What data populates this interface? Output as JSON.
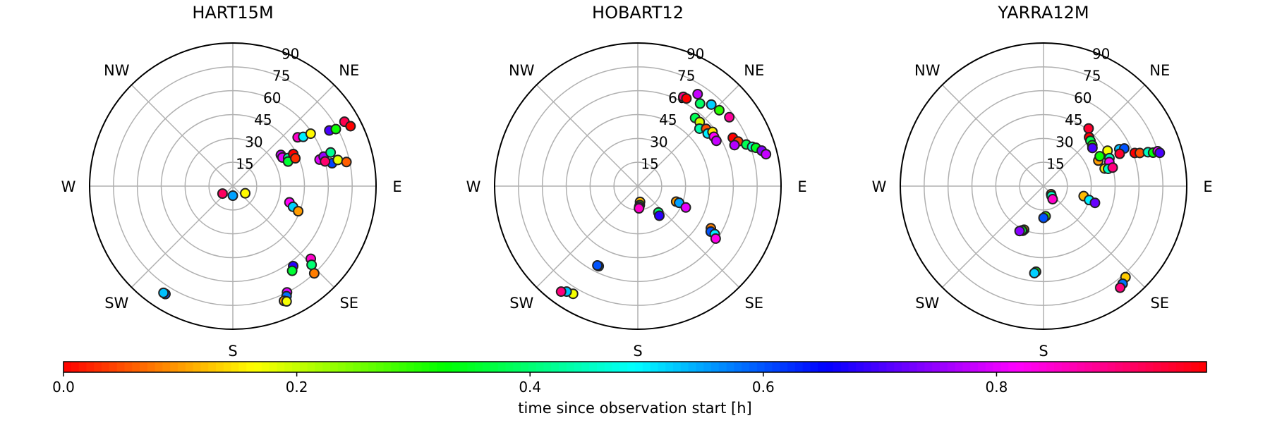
{
  "chart_data": {
    "type": "scatter",
    "projection": "polar (azimuth, zenith angle)",
    "grid": true,
    "colormap": "hsv",
    "colorbar": {
      "label": "time since observation start [h]",
      "range": [
        0,
        0.98
      ],
      "ticks": [
        "0.0",
        "0.2",
        "0.4",
        "0.6",
        "0.8"
      ],
      "tick_values": [
        0.0,
        0.2,
        0.4,
        0.6,
        0.8
      ],
      "orientation": "horizontal"
    },
    "azimuth_labels": [
      {
        "text": "E",
        "az": 90
      },
      {
        "text": "NE",
        "az": 45
      },
      {
        "text": "N",
        "az": 0,
        "shown": false
      },
      {
        "text": "NW",
        "az": 315
      },
      {
        "text": "W",
        "az": 270
      },
      {
        "text": "SW",
        "az": 225
      },
      {
        "text": "S",
        "az": 180
      },
      {
        "text": "SE",
        "az": 135
      }
    ],
    "radial_ticks": [
      "15",
      "30",
      "45",
      "60",
      "75",
      "90"
    ],
    "radial_tick_values": [
      15,
      30,
      45,
      60,
      75,
      90
    ],
    "radial_label_azimuth": 22.5,
    "rmax": 90,
    "note_units": "points given as [azimuth deg, zenith angle deg, time h]",
    "panels": [
      {
        "title": "HART15M",
        "points": [
          [
            234,
            8,
            0.92
          ],
          [
            180,
            6,
            0.55
          ],
          [
            120,
            9,
            0.16
          ],
          [
            57,
            36,
            0.78
          ],
          [
            60,
            36,
            0.8
          ],
          [
            63,
            39,
            0.42
          ],
          [
            66,
            38,
            0.36
          ],
          [
            62,
            43,
            0.0
          ],
          [
            66,
            43,
            0.03
          ],
          [
            53,
            51,
            0.85
          ],
          [
            55,
            54,
            0.5
          ],
          [
            56,
            59,
            0.16
          ],
          [
            60,
            70,
            0.7
          ],
          [
            61,
            74,
            0.32
          ],
          [
            60,
            81,
            0.93
          ],
          [
            63,
            83,
            0.0
          ],
          [
            73,
            57,
            0.8
          ],
          [
            72,
            60,
            0.75
          ],
          [
            71,
            65,
            0.42
          ],
          [
            77,
            64,
            0.61
          ],
          [
            76,
            68,
            0.18
          ],
          [
            78,
            73,
            0.06
          ],
          [
            75,
            60,
            0.91
          ],
          [
            106,
            37,
            0.82
          ],
          [
            109,
            40,
            0.52
          ],
          [
            111,
            44,
            0.1
          ],
          [
            133,
            67,
            0.85
          ],
          [
            135,
            70,
            0.4
          ],
          [
            137,
            75,
            0.08
          ],
          [
            143,
            63,
            0.68
          ],
          [
            145,
            65,
            0.36
          ],
          [
            153,
            75,
            0.8
          ],
          [
            154,
            77,
            0.58
          ],
          [
            156,
            79,
            0.1
          ],
          [
            155,
            80,
            0.17
          ],
          [
            212,
            80,
            0.55
          ],
          [
            212,
            80,
            0.6
          ],
          [
            213,
            80,
            0.53
          ]
        ]
      },
      {
        "title": "HOBART12",
        "points": [
          [
            27,
            63,
            0.9
          ],
          [
            29,
            63,
            0.0
          ],
          [
            37,
            65,
            0.39
          ],
          [
            33,
            69,
            0.78
          ],
          [
            42,
            69,
            0.52
          ],
          [
            47,
            70,
            0.3
          ],
          [
            53,
            72,
            0.88
          ],
          [
            40,
            56,
            0.38
          ],
          [
            44,
            56,
            0.19
          ],
          [
            47,
            53,
            0.44
          ],
          [
            50,
            56,
            0.05
          ],
          [
            53,
            55,
            0.5
          ],
          [
            54,
            58,
            0.15
          ],
          [
            57,
            57,
            0.82
          ],
          [
            60,
            57,
            0.78
          ],
          [
            63,
            67,
            0.0
          ],
          [
            66,
            69,
            0.04
          ],
          [
            67,
            66,
            0.77
          ],
          [
            69,
            73,
            0.38
          ],
          [
            71,
            76,
            0.45
          ],
          [
            72,
            78,
            0.35
          ],
          [
            74,
            81,
            0.74
          ],
          [
            76,
            83,
            0.78
          ],
          [
            112,
            26,
            0.1
          ],
          [
            112,
            28,
            0.55
          ],
          [
            114,
            33,
            0.8
          ],
          [
            120,
            53,
            0.08
          ],
          [
            122,
            54,
            0.6
          ],
          [
            122,
            57,
            0.5
          ],
          [
            124,
            59,
            0.83
          ],
          [
            142,
            21,
            0.4
          ],
          [
            144,
            23,
            0.68
          ],
          [
            172,
            10,
            0.12
          ],
          [
            174,
            12,
            0.3
          ],
          [
            176,
            13,
            0.75
          ],
          [
            177,
            14,
            0.85
          ],
          [
            206,
            56,
            0.55
          ],
          [
            207,
            56,
            0.6
          ],
          [
            211,
            79,
            0.17
          ],
          [
            214,
            80,
            0.53
          ],
          [
            216,
            82,
            0.9
          ]
        ]
      },
      {
        "title": "YARRA12M",
        "points": [
          [
            38,
            46,
            0.95
          ],
          [
            43,
            42,
            0.0
          ],
          [
            46,
            41,
            0.38
          ],
          [
            50,
            40,
            0.31
          ],
          [
            52,
            39,
            0.7
          ],
          [
            61,
            46,
            0.17
          ],
          [
            64,
            53,
            0.53
          ],
          [
            65,
            56,
            0.6
          ],
          [
            67,
            52,
            0.95
          ],
          [
            65,
            38,
            0.1
          ],
          [
            62,
            40,
            0.32
          ],
          [
            67,
            45,
            0.44
          ],
          [
            70,
            44,
            0.82
          ],
          [
            74,
            40,
            0.15
          ],
          [
            75,
            42,
            0.45
          ],
          [
            75,
            45,
            0.9
          ],
          [
            70,
            61,
            0.0
          ],
          [
            71,
            64,
            0.05
          ],
          [
            72,
            69,
            0.45
          ],
          [
            73,
            72,
            0.33
          ],
          [
            73,
            75,
            0.8
          ],
          [
            74,
            76,
            0.7
          ],
          [
            104,
            26,
            0.12
          ],
          [
            107,
            30,
            0.5
          ],
          [
            108,
            34,
            0.72
          ],
          [
            137,
            7,
            0.09
          ],
          [
            141,
            8,
            0.45
          ],
          [
            145,
            10,
            0.85
          ],
          [
            138,
            77,
            0.13
          ],
          [
            141,
            79,
            0.58
          ],
          [
            143,
            80,
            0.9
          ],
          [
            176,
            19,
            0.28
          ],
          [
            180,
            20,
            0.6
          ],
          [
            204,
            30,
            0.12
          ],
          [
            205,
            31,
            0.25
          ],
          [
            206,
            31,
            0.37
          ],
          [
            208,
            32,
            0.74
          ],
          [
            185,
            54,
            0.33
          ],
          [
            186,
            55,
            0.52
          ]
        ]
      }
    ]
  }
}
